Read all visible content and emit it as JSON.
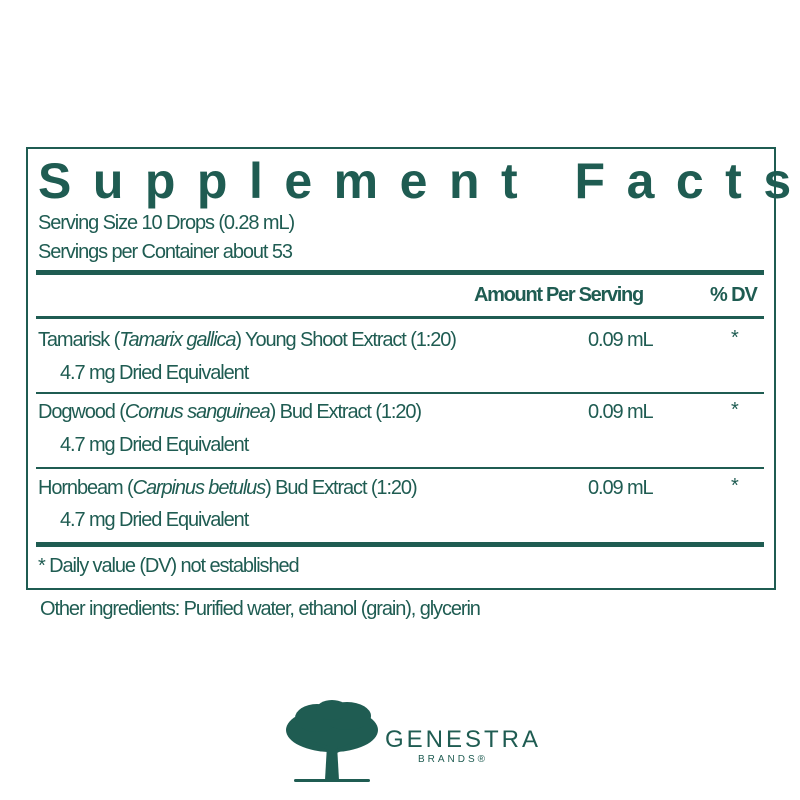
{
  "title": "Supplement Facts",
  "serving_size": "Serving Size 10 Drops (0.28 mL)",
  "servings_per_container": "Servings per Container about 53",
  "header": {
    "amount": "Amount Per Serving",
    "dv": "% DV"
  },
  "rows": [
    {
      "name": "Tamarisk (",
      "latin": "Tamarix gallica",
      "rest": ") Young Shoot Extract (1:20)",
      "sub": "4.7 mg Dried Equivalent",
      "amount": "0.09 mL",
      "dv": "*"
    },
    {
      "name": "Dogwood (",
      "latin": "Cornus sanguinea",
      "rest": ") Bud Extract (1:20)",
      "sub": "4.7 mg Dried Equivalent",
      "amount": "0.09 mL",
      "dv": "*"
    },
    {
      "name": "Hornbeam (",
      "latin": "Carpinus betulus",
      "rest": ") Bud Extract (1:20)",
      "sub": "4.7 mg Dried Equivalent",
      "amount": "0.09 mL",
      "dv": "*"
    }
  ],
  "footnote": "* Daily value (DV) not established",
  "other_ingredients": "Other ingredients: Purified water, ethanol (grain), glycerin",
  "brand": {
    "name": "GENESTRA",
    "sub": "BRANDS®",
    "logo_icon": "tree-icon"
  },
  "colors": {
    "primary": "#1f5c52"
  }
}
